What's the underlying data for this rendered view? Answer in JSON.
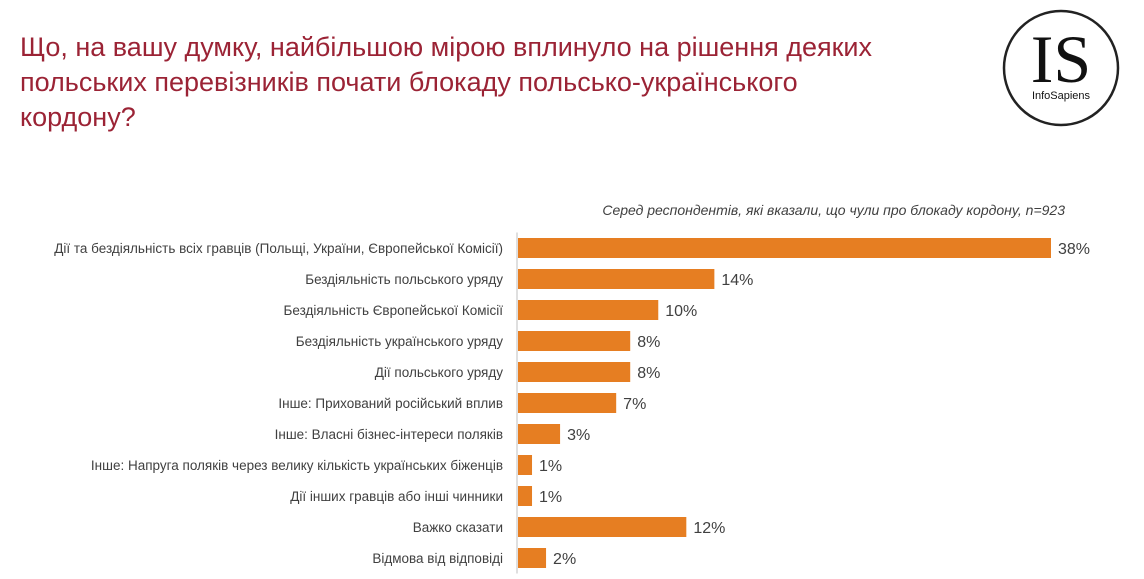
{
  "title": "Що, на вашу думку, найбільшою мірою вплинуло на рішення деяких польських перевізників почати блокаду польсько-українського кордону?",
  "logo": {
    "mark": "IS",
    "name": "InfoSapiens"
  },
  "colors": {
    "title": "#9b2335",
    "bar": "#e67e22",
    "label": "#404040",
    "axis": "#bfbfbf"
  },
  "chart_data": {
    "type": "bar",
    "orientation": "horizontal",
    "title": "Що, на вашу думку, найбільшою мірою вплинуло на рішення деяких польських перевізників почати блокаду польсько-українського кордону?",
    "subtitle": "Серед респондентів, які вказали, що чули про блокаду кордону, n=923",
    "xlabel": "",
    "ylabel": "",
    "unit": "%",
    "categories": [
      "Дії та бездіяльність всіх гравців (Польщі, України, Європейської Комісії)",
      "Бездіяльність польського уряду",
      "Бездіяльність Європейської Комісії",
      "Бездіяльність українського уряду",
      "Дії польського уряду",
      "Інше: Прихований російський вплив",
      "Інше: Власні бізнес-інтереси поляків",
      "Інше: Напруга поляків через велику кількість українських біженців",
      "Дії інших гравців або інші чинники",
      "Важко сказати",
      "Відмова від відповіді"
    ],
    "values": [
      38,
      14,
      10,
      8,
      8,
      7,
      3,
      1,
      1,
      12,
      2
    ],
    "labels": [
      "38%",
      "14%",
      "10%",
      "8%",
      "8%",
      "7%",
      "3%",
      "1%",
      "1%",
      "12%",
      "2%"
    ],
    "xlim": [
      0,
      38
    ]
  }
}
